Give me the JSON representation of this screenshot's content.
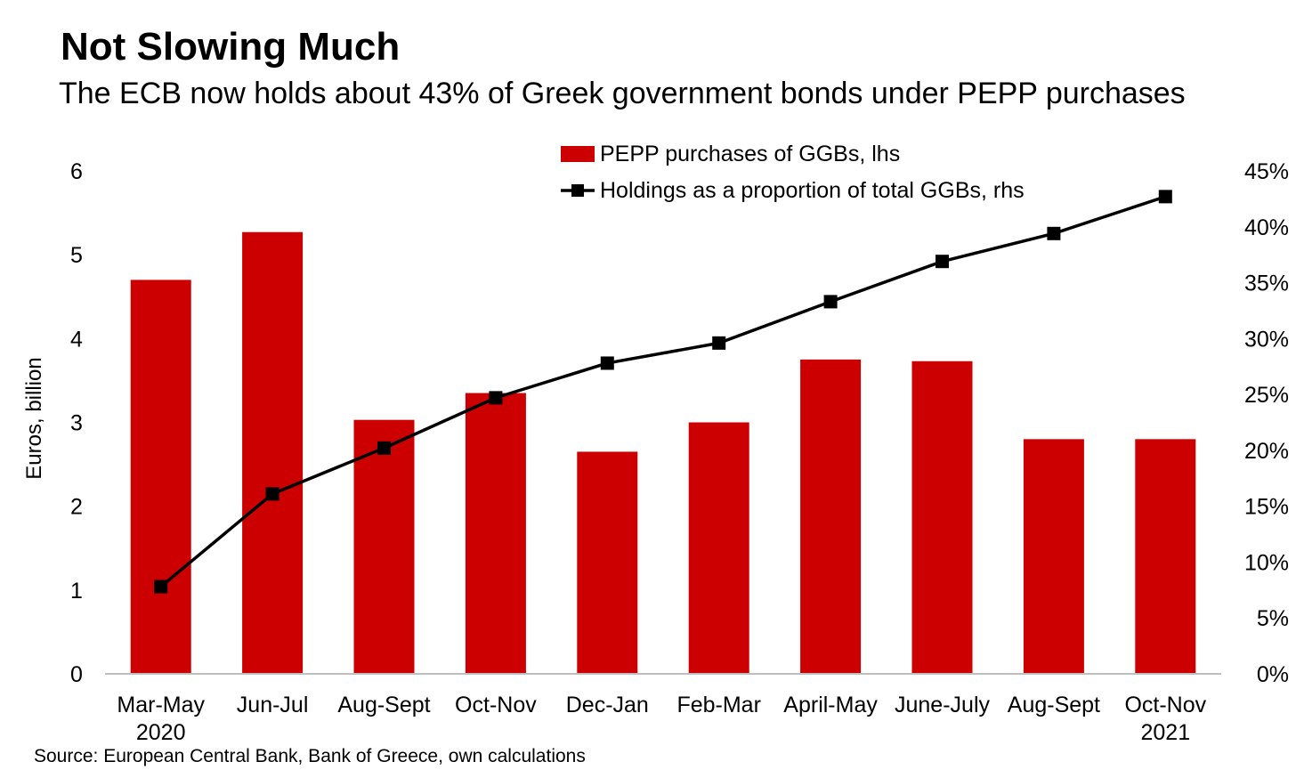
{
  "title": "Not Slowing Much",
  "subtitle": "The ECB now holds about 43% of Greek government bonds under PEPP purchases",
  "source": "Source: European Central Bank, Bank of Greece, own calculations",
  "chart_data": {
    "type": "bar",
    "categories": [
      [
        "Mar-May",
        "2020"
      ],
      [
        "Jun-Jul"
      ],
      [
        "Aug-Sept"
      ],
      [
        "Oct-Nov"
      ],
      [
        "Dec-Jan"
      ],
      [
        "Feb-Mar"
      ],
      [
        "April-May"
      ],
      [
        "June-July"
      ],
      [
        "Aug-Sept"
      ],
      [
        "Oct-Nov",
        "2021"
      ]
    ],
    "series": [
      {
        "name": "PEPP purchases of GGBs, lhs",
        "type": "bar",
        "axis": "left",
        "color": "#cc0000",
        "values": [
          4.7,
          5.27,
          3.03,
          3.35,
          2.65,
          3.0,
          3.75,
          3.73,
          2.8,
          2.8
        ]
      },
      {
        "name": "Holdings as a proportion of total GGBs, rhs",
        "type": "line",
        "axis": "right",
        "color": "#000000",
        "marker": "square",
        "values": [
          7.8,
          16.1,
          20.2,
          24.7,
          27.8,
          29.6,
          33.3,
          36.9,
          39.4,
          42.7
        ]
      }
    ],
    "ylabel": "Euros, billion",
    "ylim": [
      0,
      6
    ],
    "yticks": [
      "0",
      "1",
      "2",
      "3",
      "4",
      "5",
      "6"
    ],
    "y2lim": [
      0,
      45
    ],
    "y2ticks": [
      "0%",
      "5%",
      "10%",
      "15%",
      "20%",
      "25%",
      "30%",
      "35%",
      "40%",
      "45%"
    ],
    "legend_position": "top-center",
    "grid": false
  }
}
